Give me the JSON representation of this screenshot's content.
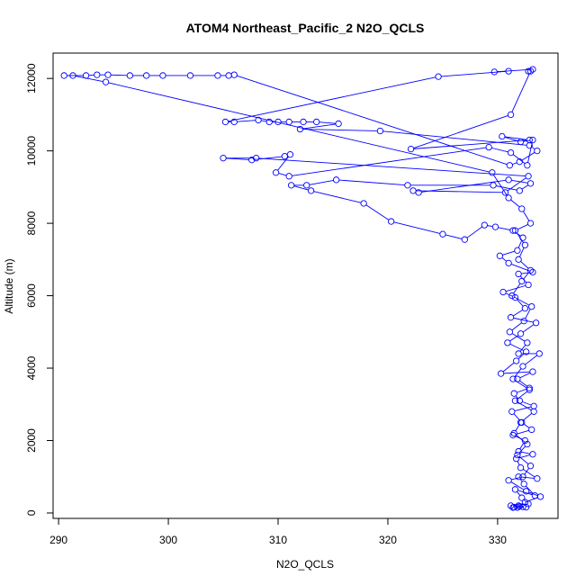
{
  "chart_data": {
    "type": "line",
    "title": "ATOM4 Northeast_Pacific_2 N2O_QCLS",
    "xlabel": "N2O_QCLS",
    "ylabel": "Altitude (m)",
    "xlim": [
      289.5,
      335.5
    ],
    "ylim": [
      -150,
      12700
    ],
    "xticks": [
      290,
      300,
      310,
      320,
      330
    ],
    "yticks": [
      0,
      2000,
      4000,
      6000,
      8000,
      10000,
      12000
    ],
    "grid": false,
    "color": "#0000ff",
    "marker": "open-circle",
    "series": [
      {
        "points": [
          [
            331.8,
            150
          ],
          [
            332.0,
            180
          ],
          [
            332.3,
            170
          ],
          [
            331.5,
            160
          ],
          [
            332.6,
            160
          ],
          [
            331.2,
            200
          ],
          [
            332.8,
            250
          ],
          [
            332.2,
            420
          ],
          [
            331.6,
            650
          ],
          [
            333.4,
            480
          ],
          [
            332.4,
            800
          ],
          [
            331.9,
            1000
          ],
          [
            333.6,
            950
          ],
          [
            332.1,
            1250
          ],
          [
            331.7,
            1500
          ],
          [
            333.2,
            1620
          ],
          [
            331.9,
            1700
          ],
          [
            332.5,
            2000
          ],
          [
            331.4,
            2150
          ],
          [
            333.1,
            2300
          ],
          [
            332.2,
            2500
          ],
          [
            331.3,
            2800
          ],
          [
            333.3,
            2950
          ],
          [
            332.0,
            3100
          ],
          [
            331.5,
            3300
          ],
          [
            332.9,
            3450
          ],
          [
            331.8,
            3700
          ],
          [
            333.2,
            3900
          ],
          [
            330.3,
            3850
          ],
          [
            331.7,
            4200
          ],
          [
            332.6,
            4450
          ],
          [
            330.9,
            4700
          ],
          [
            332.1,
            4950
          ],
          [
            333.5,
            5250
          ],
          [
            331.2,
            5400
          ],
          [
            332.5,
            5650
          ],
          [
            331.6,
            5950
          ],
          [
            330.5,
            6100
          ],
          [
            332.8,
            6300
          ],
          [
            331.9,
            6600
          ],
          [
            333.2,
            6650
          ],
          [
            331.0,
            6900
          ],
          [
            330.2,
            7100
          ],
          [
            331.8,
            7250
          ],
          [
            332.3,
            7600
          ],
          [
            331.4,
            7800
          ],
          [
            329.8,
            7900
          ],
          [
            328.8,
            7950
          ],
          [
            327.0,
            7550
          ],
          [
            325.0,
            7700
          ],
          [
            320.3,
            8050
          ],
          [
            317.8,
            8550
          ],
          [
            313.0,
            8900
          ],
          [
            311.2,
            9050
          ],
          [
            312.6,
            9050
          ],
          [
            315.3,
            9200
          ],
          [
            321.8,
            9050
          ],
          [
            329.6,
            9050
          ],
          [
            332.0,
            8900
          ],
          [
            333.0,
            9100
          ],
          [
            331.0,
            9200
          ],
          [
            322.8,
            8850
          ],
          [
            322.3,
            8900
          ],
          [
            330.7,
            8850
          ],
          [
            332.8,
            9300
          ],
          [
            308.0,
            9800
          ],
          [
            305.0,
            9800
          ],
          [
            307.6,
            9750
          ],
          [
            310.6,
            9850
          ],
          [
            311.1,
            9900
          ],
          [
            309.8,
            9400
          ],
          [
            311.0,
            9300
          ],
          [
            329.2,
            10100
          ],
          [
            331.2,
            9950
          ],
          [
            332.7,
            9600
          ],
          [
            333.2,
            10300
          ],
          [
            332.1,
            10250
          ],
          [
            330.4,
            10400
          ],
          [
            332.9,
            10300
          ],
          [
            322.1,
            10050
          ],
          [
            331.2,
            11000
          ],
          [
            333.0,
            12200
          ],
          [
            332.8,
            12200
          ],
          [
            333.2,
            12250
          ],
          [
            329.7,
            12180
          ],
          [
            331.0,
            12200
          ],
          [
            324.6,
            12050
          ],
          [
            305.2,
            10800
          ],
          [
            306.0,
            10800
          ],
          [
            308.2,
            10850
          ],
          [
            309.2,
            10800
          ],
          [
            310.0,
            10800
          ],
          [
            311.0,
            10800
          ],
          [
            312.3,
            10800
          ],
          [
            313.5,
            10800
          ],
          [
            315.5,
            10750
          ],
          [
            312.0,
            10600
          ],
          [
            319.3,
            10550
          ],
          [
            332.9,
            10150
          ],
          [
            333.6,
            10000
          ],
          [
            332.0,
            9700
          ],
          [
            331.1,
            9600
          ],
          [
            306.0,
            12100
          ],
          [
            305.5,
            12080
          ],
          [
            304.5,
            12080
          ],
          [
            302.0,
            12080
          ],
          [
            299.5,
            12080
          ],
          [
            298.0,
            12080
          ],
          [
            296.5,
            12080
          ],
          [
            294.5,
            12100
          ],
          [
            293.5,
            12100
          ],
          [
            292.5,
            12080
          ],
          [
            290.5,
            12080
          ],
          [
            291.3,
            12080
          ],
          [
            294.3,
            11900
          ],
          [
            329.5,
            9400
          ],
          [
            331.0,
            8700
          ],
          [
            332.2,
            8400
          ],
          [
            333.0,
            8000
          ],
          [
            331.6,
            7800
          ],
          [
            332.5,
            7400
          ],
          [
            331.9,
            7000
          ],
          [
            333.0,
            6700
          ],
          [
            332.2,
            6400
          ],
          [
            331.3,
            6000
          ],
          [
            333.1,
            5700
          ],
          [
            332.4,
            5300
          ],
          [
            331.1,
            5000
          ],
          [
            332.7,
            4700
          ],
          [
            331.9,
            4400
          ],
          [
            333.8,
            4400
          ],
          [
            332.3,
            4050
          ],
          [
            331.4,
            3700
          ],
          [
            332.9,
            3400
          ],
          [
            331.6,
            3100
          ],
          [
            333.3,
            2800
          ],
          [
            332.1,
            2500
          ],
          [
            331.5,
            2200
          ],
          [
            332.7,
            1900
          ],
          [
            331.8,
            1600
          ],
          [
            333.0,
            1300
          ],
          [
            332.3,
            1000
          ],
          [
            331.0,
            900
          ],
          [
            332.6,
            600
          ],
          [
            333.9,
            450
          ],
          [
            332.5,
            300
          ],
          [
            331.9,
            200
          ],
          [
            331.4,
            150
          ]
        ]
      }
    ]
  }
}
